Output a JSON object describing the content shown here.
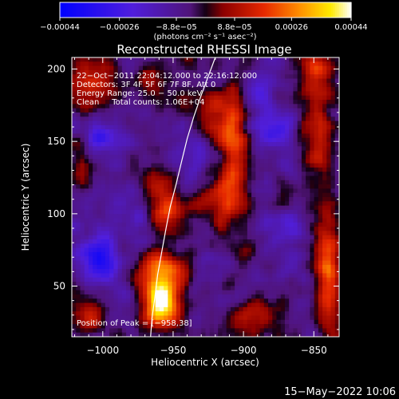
{
  "chart_data": {
    "type": "heatmap",
    "title": "Reconstructed RHESSI Image",
    "xlabel": "Heliocentric X (arcsec)",
    "ylabel": "Heliocentric Y (arcsec)",
    "xlim": [
      -1022,
      -832
    ],
    "ylim": [
      15,
      208
    ],
    "xticks": [
      -1000,
      -950,
      -900,
      -850
    ],
    "yticks": [
      50,
      100,
      150,
      200
    ],
    "xtick_labels": [
      "−1000",
      "−950",
      "−900",
      "−850"
    ],
    "ytick_labels": [
      "50",
      "100",
      "150",
      "200"
    ],
    "colorbar": {
      "range": [
        -0.00044,
        0.00044
      ],
      "ticks": [
        -0.00044,
        -0.00026,
        -8.8e-05,
        8.8e-05,
        0.00026,
        0.00044
      ],
      "tick_labels": [
        "−0.00044",
        "−0.00026",
        "−8.8e−05",
        "8.8e−05",
        "0.00026",
        "0.00044"
      ],
      "unit_label": "(photons cm⁻² s⁻¹ asec⁻²)"
    },
    "annotations": [
      "22−Oct−2011 22:04:12.000 to 22:16:12.000",
      "Detectors: 3F 4F 5F 6F 7F 8F, Att 0",
      "Energy Range: 25.0 − 50.0 keV",
      "Clean     Total counts: 1.06E+04"
    ],
    "peak_label": "Position of Peak = [−958,38]",
    "peak": [
      -958,
      38
    ],
    "timestamp": "15−May−2022 10:06",
    "limb_curve": [
      [
        -920,
        208
      ],
      [
        -925,
        195
      ],
      [
        -930,
        182
      ],
      [
        -935,
        168
      ],
      [
        -940,
        152
      ],
      [
        -944,
        136
      ],
      [
        -948,
        120
      ],
      [
        -952,
        105
      ],
      [
        -955,
        90
      ],
      [
        -958,
        74
      ],
      [
        -961,
        58
      ],
      [
        -963,
        42
      ],
      [
        -965,
        28
      ],
      [
        -966,
        15
      ]
    ],
    "hot_spots": [
      {
        "x": -958,
        "y": 40,
        "sx": 9,
        "sy": 13,
        "amp": 0.0005
      },
      {
        "x": -960,
        "y": 62,
        "sx": 14,
        "sy": 9,
        "amp": 0.00024
      },
      {
        "x": -952,
        "y": 100,
        "sx": 10,
        "sy": 10,
        "amp": 0.00022
      },
      {
        "x": -960,
        "y": 118,
        "sx": 8,
        "sy": 10,
        "amp": 0.00016
      },
      {
        "x": -915,
        "y": 108,
        "sx": 8,
        "sy": 14,
        "amp": 0.00026
      },
      {
        "x": -905,
        "y": 150,
        "sx": 6,
        "sy": 30,
        "amp": 0.00024
      },
      {
        "x": -920,
        "y": 165,
        "sx": 10,
        "sy": 18,
        "amp": 0.00018
      },
      {
        "x": -1005,
        "y": 190,
        "sx": 12,
        "sy": 12,
        "amp": 0.00022
      },
      {
        "x": -1015,
        "y": 135,
        "sx": 6,
        "sy": 10,
        "amp": 0.00016
      },
      {
        "x": -960,
        "y": 190,
        "sx": 10,
        "sy": 8,
        "amp": 0.00016
      },
      {
        "x": -840,
        "y": 60,
        "sx": 6,
        "sy": 30,
        "amp": 0.0003
      },
      {
        "x": -848,
        "y": 160,
        "sx": 8,
        "sy": 28,
        "amp": 0.0002
      },
      {
        "x": -845,
        "y": 200,
        "sx": 10,
        "sy": 8,
        "amp": 0.00018
      },
      {
        "x": -1010,
        "y": 30,
        "sx": 10,
        "sy": 10,
        "amp": 0.00016
      },
      {
        "x": -895,
        "y": 30,
        "sx": 12,
        "sy": 8,
        "amp": 0.00016
      },
      {
        "x": -900,
        "y": 70,
        "sx": 6,
        "sy": 8,
        "amp": 0.00012
      },
      {
        "x": -872,
        "y": 110,
        "sx": 6,
        "sy": 8,
        "amp": 0.0001
      }
    ],
    "cold_spots": [
      {
        "x": -1002,
        "y": 70,
        "sx": 10,
        "sy": 12,
        "amp": -0.00028
      },
      {
        "x": -880,
        "y": 160,
        "sx": 12,
        "sy": 10,
        "amp": -0.00022
      },
      {
        "x": -890,
        "y": 185,
        "sx": 8,
        "sy": 8,
        "amp": -0.00018
      },
      {
        "x": -1000,
        "y": 150,
        "sx": 10,
        "sy": 8,
        "amp": -0.00016
      },
      {
        "x": -935,
        "y": 140,
        "sx": 10,
        "sy": 10,
        "amp": -0.00014
      },
      {
        "x": -980,
        "y": 100,
        "sx": 12,
        "sy": 10,
        "amp": -0.00012
      },
      {
        "x": -870,
        "y": 90,
        "sx": 10,
        "sy": 10,
        "amp": -0.00012
      }
    ],
    "background": -7e-05,
    "noise": 8e-05,
    "colors": {
      "background": "#000000",
      "text": "#ffffff",
      "limb": "#ffffff",
      "frame": "#ffffff"
    }
  }
}
